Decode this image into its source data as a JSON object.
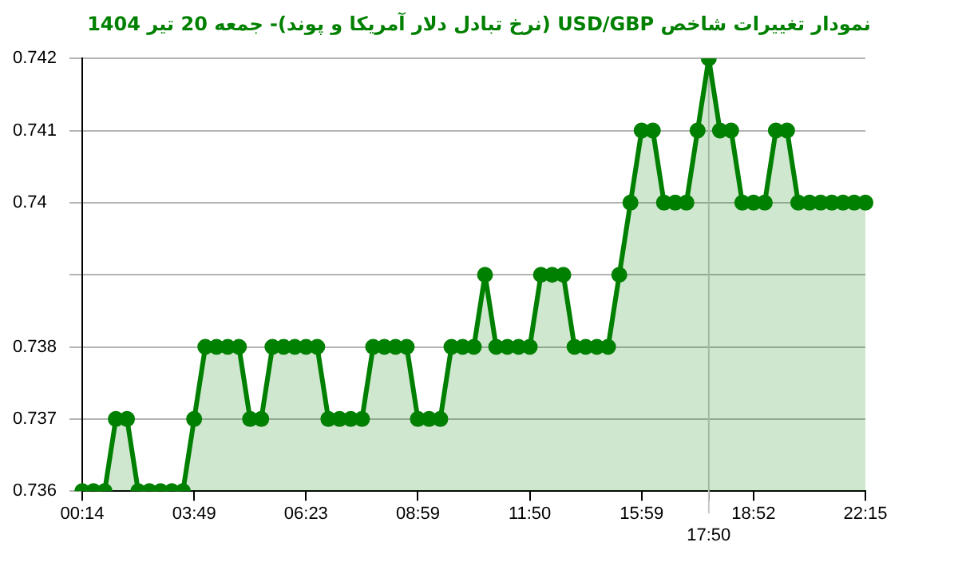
{
  "chart_data": {
    "type": "area",
    "title": "نمودار تغییرات شاخص USD/GBP (نرخ تبادل دلار آمریکا و پوند)- جمعه  20 تیر 1404",
    "categories": [
      "00:14",
      null,
      null,
      null,
      null,
      null,
      null,
      null,
      null,
      null,
      "03:49",
      null,
      null,
      null,
      null,
      null,
      null,
      null,
      null,
      null,
      "06:23",
      null,
      null,
      null,
      null,
      null,
      null,
      null,
      null,
      null,
      "08:59",
      null,
      null,
      null,
      null,
      null,
      null,
      null,
      null,
      null,
      "11:50",
      null,
      null,
      null,
      null,
      null,
      null,
      null,
      null,
      null,
      "15:59",
      null,
      null,
      null,
      null,
      null,
      "17:50",
      null,
      null,
      null,
      "18:52",
      null,
      null,
      null,
      null,
      null,
      null,
      null,
      null,
      null,
      "22:15"
    ],
    "series": [
      {
        "color": "#008000",
        "values": [
          0.736,
          0.736,
          0.736,
          0.737,
          0.737,
          0.736,
          0.736,
          0.736,
          0.736,
          0.736,
          0.737,
          0.738,
          0.738,
          0.738,
          0.738,
          0.737,
          0.737,
          0.738,
          0.738,
          0.738,
          0.738,
          0.738,
          0.737,
          0.737,
          0.737,
          0.737,
          0.738,
          0.738,
          0.738,
          0.738,
          0.737,
          0.737,
          0.737,
          0.738,
          0.738,
          0.738,
          0.739,
          0.738,
          0.738,
          0.738,
          0.738,
          0.739,
          0.739,
          0.739,
          0.738,
          0.738,
          0.738,
          0.738,
          0.739,
          0.74,
          0.741,
          0.741,
          0.74,
          0.74,
          0.74,
          0.741,
          0.742,
          0.741,
          0.741,
          0.74,
          0.74,
          0.74,
          0.741,
          0.741,
          0.74,
          0.74,
          0.74,
          0.74,
          0.74,
          0.74,
          0.74
        ]
      }
    ],
    "ylim": [
      0.736,
      0.742
    ],
    "yticks": [
      0.736,
      0.737,
      0.738,
      {
        "value": 0.739,
        "label": null
      },
      0.74,
      0.741,
      0.742
    ],
    "ref_lines": [
      {
        "axis": "x",
        "value": "17:50",
        "color": "#c8c8c8"
      }
    ],
    "grid": "y",
    "legend": false,
    "marker": "circle",
    "line_style": "solid"
  }
}
